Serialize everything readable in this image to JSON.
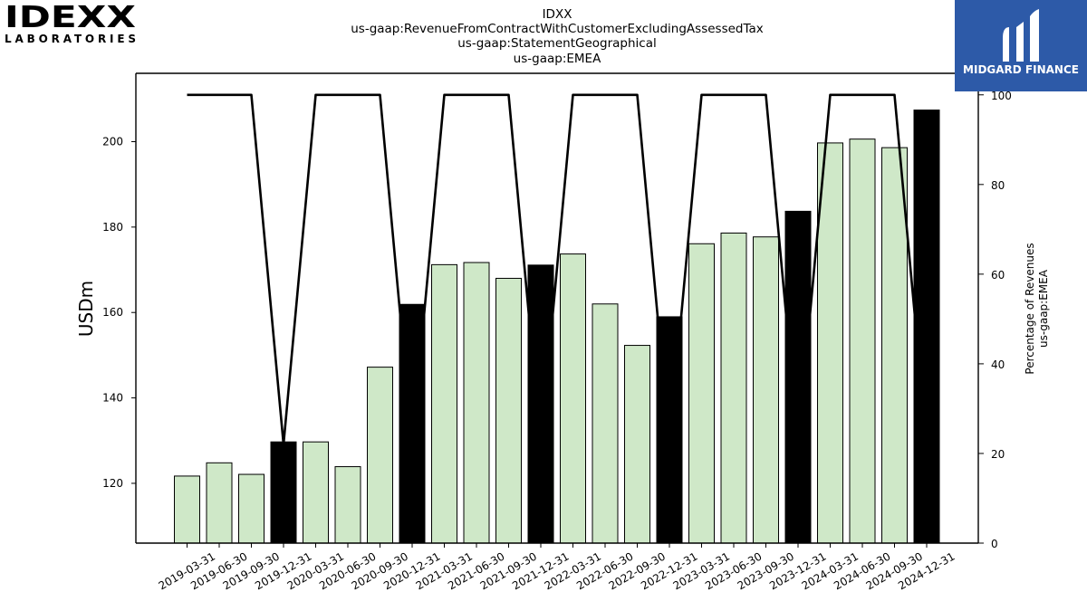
{
  "titles": {
    "line1": "IDXX",
    "line2": "us-gaap:RevenueFromContractWithCustomerExcludingAssessedTax",
    "line3": "us-gaap:StatementGeographical",
    "line4": "us-gaap:EMEA"
  },
  "logos": {
    "company_main": "IDEXX",
    "company_sub": "LABORATORIES",
    "watermark": "MIDGARD FINANCE"
  },
  "colors": {
    "bar_regular": "#cfe8c8",
    "bar_q4": "#000000",
    "line": "#000000",
    "watermark_bg": "#2d5aa8"
  },
  "chart_data": {
    "type": "bar",
    "categories": [
      "2019-03-31",
      "2019-06-30",
      "2019-09-30",
      "2019-12-31",
      "2020-03-31",
      "2020-06-30",
      "2020-09-30",
      "2020-12-31",
      "2021-03-31",
      "2021-06-30",
      "2021-09-30",
      "2021-12-31",
      "2022-03-31",
      "2022-06-30",
      "2022-09-30",
      "2022-12-31",
      "2023-03-31",
      "2023-06-30",
      "2023-09-30",
      "2023-12-31",
      "2024-03-31",
      "2024-06-30",
      "2024-09-30",
      "2024-12-31"
    ],
    "series": [
      {
        "values": [
          121.7,
          124.8,
          122.1,
          129.7,
          129.7,
          123.9,
          147.2,
          161.9,
          171.2,
          171.7,
          168.0,
          171.1,
          173.7,
          162.0,
          152.3,
          159.0,
          176.1,
          178.6,
          177.7,
          183.7,
          199.7,
          200.6,
          198.6,
          207.4
        ],
        "axis": "left"
      },
      {
        "values": [
          100,
          100,
          100,
          22,
          100,
          100,
          100,
          22,
          100,
          100,
          100,
          22,
          100,
          100,
          100,
          22,
          100,
          100,
          100,
          22,
          100,
          100,
          100,
          22
        ],
        "axis": "right",
        "type": "line"
      }
    ],
    "highlighted_categories": [
      "2019-12-31",
      "2020-12-31",
      "2021-12-31",
      "2022-12-31",
      "2023-12-31",
      "2024-12-31"
    ],
    "ylabel": "USDm",
    "ylim": [
      106,
      216
    ],
    "yticks": [
      120,
      140,
      160,
      180,
      200
    ],
    "y2label_line1": "Percentage of Revenues",
    "y2label_line2": "us-gaap:EMEA",
    "y2lim": [
      0,
      104.8
    ],
    "y2ticks": [
      0,
      20,
      40,
      60,
      80,
      100
    ],
    "grid": false,
    "legend": "none"
  }
}
